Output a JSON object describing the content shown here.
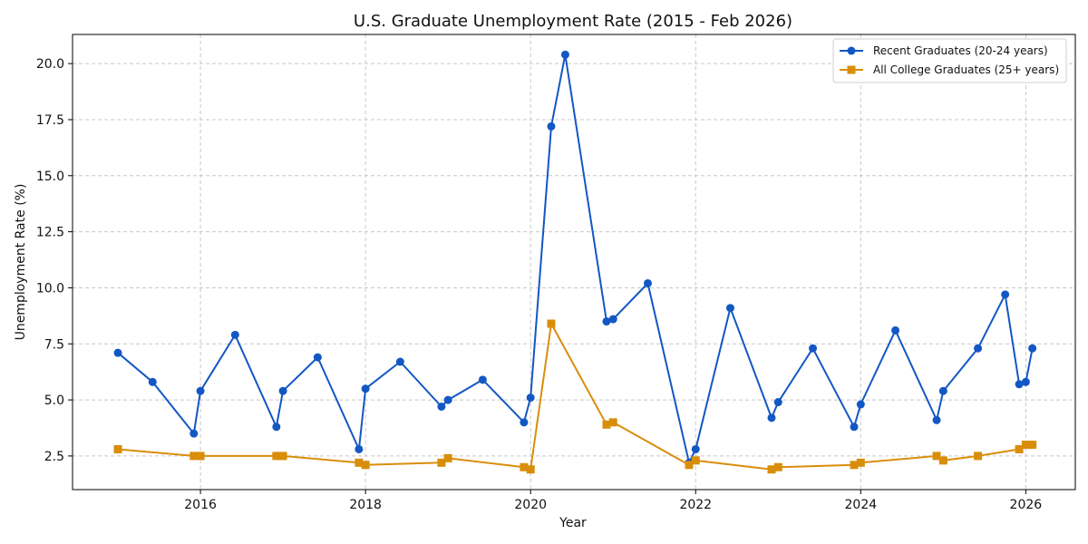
{
  "chart_data": {
    "type": "line",
    "title": "U.S. Graduate Unemployment Rate (2015 - Feb 2026)",
    "xlabel": "Year",
    "ylabel": "Unemployment Rate (%)",
    "xlim": [
      2014.45,
      2026.6
    ],
    "ylim": [
      1.0,
      21.3
    ],
    "xticks": [
      2016,
      2018,
      2020,
      2022,
      2024,
      2026
    ],
    "xtick_labels": [
      "2016",
      "2018",
      "2020",
      "2022",
      "2024",
      "2026"
    ],
    "yticks": [
      2.5,
      5.0,
      7.5,
      10.0,
      12.5,
      15.0,
      17.5,
      20.0
    ],
    "ytick_labels": [
      "2.5",
      "5.0",
      "7.5",
      "10.0",
      "12.5",
      "15.0",
      "17.5",
      "20.0"
    ],
    "grid": true,
    "legend_position": "top-right",
    "series": [
      {
        "name": "Recent Graduates (20-24 years)",
        "color": "#1357c4",
        "marker": "circle",
        "x": [
          2015.0,
          2015.42,
          2015.92,
          2016.0,
          2016.42,
          2016.92,
          2017.0,
          2017.42,
          2017.92,
          2018.0,
          2018.42,
          2018.92,
          2019.0,
          2019.42,
          2019.92,
          2020.0,
          2020.25,
          2020.42,
          2020.92,
          2021.0,
          2021.42,
          2021.92,
          2022.0,
          2022.42,
          2022.92,
          2023.0,
          2023.42,
          2023.92,
          2024.0,
          2024.42,
          2024.92,
          2025.0,
          2025.42,
          2025.75,
          2025.92,
          2026.0,
          2026.08
        ],
        "y": [
          7.1,
          5.8,
          3.5,
          5.4,
          7.9,
          3.8,
          5.4,
          6.9,
          2.8,
          5.5,
          6.7,
          4.7,
          5.0,
          5.9,
          4.0,
          5.1,
          17.2,
          20.4,
          8.5,
          8.6,
          10.2,
          2.2,
          2.8,
          9.1,
          4.2,
          4.9,
          7.3,
          3.8,
          4.8,
          8.1,
          4.1,
          5.4,
          7.3,
          9.7,
          5.7,
          5.8,
          7.3
        ]
      },
      {
        "name": "All College Graduates (25+ years)",
        "color": "#d98e0a",
        "marker": "square",
        "x": [
          2015.0,
          2015.92,
          2016.0,
          2016.92,
          2017.0,
          2017.92,
          2018.0,
          2018.92,
          2019.0,
          2019.92,
          2020.0,
          2020.25,
          2020.92,
          2021.0,
          2021.92,
          2022.0,
          2022.92,
          2023.0,
          2023.92,
          2024.0,
          2024.92,
          2025.0,
          2025.42,
          2025.92,
          2026.0,
          2026.08
        ],
        "y": [
          2.8,
          2.5,
          2.5,
          2.5,
          2.5,
          2.2,
          2.1,
          2.2,
          2.4,
          2.0,
          1.9,
          8.4,
          3.9,
          4.0,
          2.1,
          2.3,
          1.9,
          2.0,
          2.1,
          2.2,
          2.5,
          2.3,
          2.5,
          2.8,
          3.0,
          3.0
        ]
      }
    ]
  }
}
